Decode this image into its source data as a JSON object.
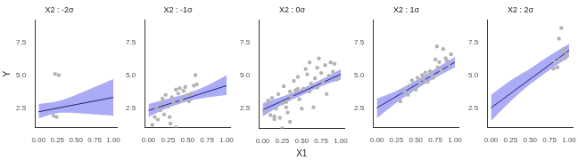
{
  "chart_data": [
    {
      "type": "scatter",
      "title": "X2 : -2σ",
      "y_label": "Y",
      "xlim": [
        -0.05,
        1.05
      ],
      "ylim": [
        1,
        9.2
      ],
      "xticks": [
        {
          "value": 0,
          "label": "0.00"
        },
        {
          "value": 0.25,
          "label": "0.25"
        },
        {
          "value": 0.5,
          "label": "0.50"
        },
        {
          "value": 0.75,
          "label": "0.75"
        },
        {
          "value": 1,
          "label": "1.00"
        }
      ],
      "yticks": [
        2.5,
        {
          "value": 5,
          "label": "5.0"
        },
        7.5
      ],
      "grid": false,
      "series": [
        {
          "type": "scatter",
          "color": "#b3b3b3",
          "x": [
            0.22,
            0.27,
            0.2,
            0.24
          ],
          "values": [
            5.1,
            5.0,
            1.9,
            1.8
          ]
        },
        {
          "type": "line",
          "color": "#1f1f7a",
          "x": [
            0,
            1
          ],
          "values": [
            2.2,
            3.3
          ]
        },
        {
          "type": "band",
          "color": "#a3a3f5",
          "x": [
            0,
            0.25,
            0.5,
            0.75,
            1
          ],
          "lower": [
            1.7,
            2.1,
            2.1,
            2.0,
            1.9
          ],
          "upper": [
            2.8,
            3.0,
            3.5,
            4.1,
            4.7
          ]
        }
      ]
    },
    {
      "type": "scatter",
      "title": "X2 : -1σ",
      "xlim": [
        -0.05,
        1.05
      ],
      "ylim": [
        1,
        9.2
      ],
      "xticks": [
        {
          "value": 0,
          "label": "0.00"
        },
        {
          "value": 0.25,
          "label": "0.25"
        },
        {
          "value": 0.5,
          "label": "0.50"
        },
        {
          "value": 0.75,
          "label": "0.75"
        },
        {
          "value": 1,
          "label": "1.00"
        }
      ],
      "yticks": [
        2.5,
        {
          "value": 5,
          "label": "5.0"
        },
        7.5
      ],
      "grid": false,
      "series": [
        {
          "type": "scatter",
          "color": "#b3b3b3",
          "x": [
            0.05,
            0.08,
            0.1,
            0.12,
            0.15,
            0.18,
            0.2,
            0.22,
            0.25,
            0.27,
            0.3,
            0.32,
            0.35,
            0.38,
            0.4,
            0.42,
            0.45,
            0.47,
            0.5,
            0.52,
            0.55,
            0.58,
            0.6,
            0.62,
            0.35,
            0.28,
            0.15
          ],
          "values": [
            1.2,
            1.8,
            2.5,
            1.6,
            2.8,
            3.2,
            2.0,
            3.5,
            2.6,
            1.8,
            3.3,
            2.9,
            3.9,
            3.6,
            4.0,
            3.1,
            3.8,
            4.1,
            3.5,
            3.0,
            3.6,
            4.2,
            5.0,
            4.3,
            1.0,
            1.3,
            2.3
          ]
        },
        {
          "type": "line",
          "color": "#1f1f7a",
          "x": [
            0,
            1
          ],
          "values": [
            2.3,
            4.2
          ]
        },
        {
          "type": "band",
          "color": "#a3a3f5",
          "x": [
            0,
            0.25,
            0.5,
            0.75,
            1
          ],
          "lower": [
            1.8,
            2.5,
            3.0,
            3.3,
            3.5
          ],
          "upper": [
            2.8,
            3.2,
            3.6,
            4.2,
            5.0
          ]
        }
      ]
    },
    {
      "type": "scatter",
      "title": "X2 : 0σ",
      "x_label": "X1",
      "xlim": [
        -0.05,
        1.05
      ],
      "ylim": [
        1,
        9.2
      ],
      "xticks": [
        {
          "value": 0,
          "label": "0.00"
        },
        {
          "value": 0.25,
          "label": "0.25"
        },
        {
          "value": 0.5,
          "label": "0.50"
        },
        {
          "value": 0.75,
          "label": "0.75"
        },
        {
          "value": 1,
          "label": "1.00"
        }
      ],
      "yticks": [
        2.5,
        {
          "value": 5,
          "label": "5.0"
        },
        7.5
      ],
      "grid": false,
      "series": [
        {
          "type": "scatter",
          "color": "#b3b3b3",
          "x": [
            0.02,
            0.05,
            0.07,
            0.1,
            0.12,
            0.15,
            0.17,
            0.2,
            0.22,
            0.25,
            0.27,
            0.3,
            0.32,
            0.35,
            0.37,
            0.4,
            0.42,
            0.45,
            0.47,
            0.5,
            0.52,
            0.55,
            0.57,
            0.6,
            0.62,
            0.65,
            0.67,
            0.7,
            0.72,
            0.75,
            0.77,
            0.8,
            0.82,
            0.85,
            0.87,
            0.9,
            0.92,
            0.95,
            0.25,
            0.35,
            0.45,
            0.6,
            0.7,
            0.15,
            0.3
          ],
          "values": [
            2.3,
            2.8,
            3.1,
            2.0,
            3.3,
            1.7,
            2.5,
            3.6,
            1.8,
            2.9,
            4.2,
            3.0,
            2.2,
            3.8,
            3.4,
            4.6,
            3.9,
            4.9,
            3.2,
            2.5,
            4.0,
            5.5,
            5.1,
            3.8,
            4.4,
            2.6,
            4.8,
            4.1,
            6.3,
            5.2,
            4.5,
            5.8,
            3.6,
            5.0,
            6.0,
            5.3,
            5.9,
            4.7,
            1.0,
            1.5,
            4.0,
            6.0,
            5.6,
            1.9,
            2.6
          ]
        },
        {
          "type": "line",
          "color": "#1f1f7a",
          "x": [
            0,
            1
          ],
          "values": [
            2.4,
            5.1
          ]
        },
        {
          "type": "band",
          "color": "#a3a3f5",
          "x": [
            0,
            0.25,
            0.5,
            0.75,
            1
          ],
          "lower": [
            1.9,
            2.8,
            3.5,
            4.2,
            4.7
          ],
          "upper": [
            2.9,
            3.4,
            4.0,
            4.7,
            5.5
          ]
        }
      ]
    },
    {
      "type": "scatter",
      "title": "X2 : 1σ",
      "xlim": [
        -0.05,
        1.05
      ],
      "ylim": [
        1,
        9.2
      ],
      "xticks": [
        {
          "value": 0,
          "label": "0.00"
        },
        {
          "value": 0.25,
          "label": "0.25"
        },
        {
          "value": 0.5,
          "label": "0.50"
        },
        {
          "value": 0.75,
          "label": "0.75"
        },
        {
          "value": 1,
          "label": "1.00"
        }
      ],
      "yticks": [
        2.5,
        {
          "value": 5,
          "label": "5.0"
        },
        7.5
      ],
      "grid": false,
      "series": [
        {
          "type": "scatter",
          "color": "#b3b3b3",
          "x": [
            0.3,
            0.35,
            0.4,
            0.42,
            0.45,
            0.5,
            0.52,
            0.55,
            0.58,
            0.6,
            0.62,
            0.65,
            0.68,
            0.7,
            0.72,
            0.75,
            0.77,
            0.78,
            0.8,
            0.82,
            0.85,
            0.88,
            0.9,
            0.92,
            0.95
          ],
          "values": [
            3.0,
            3.8,
            3.5,
            4.2,
            4.6,
            3.9,
            4.8,
            4.4,
            5.0,
            4.7,
            5.2,
            4.5,
            5.3,
            5.0,
            4.8,
            6.2,
            7.2,
            5.6,
            6.0,
            5.4,
            7.0,
            6.3,
            6.1,
            5.8,
            6.6
          ]
        },
        {
          "type": "line",
          "color": "#1f1f7a",
          "x": [
            0,
            1
          ],
          "values": [
            2.5,
            6.0
          ]
        },
        {
          "type": "band",
          "color": "#a3a3f5",
          "x": [
            0,
            0.25,
            0.5,
            0.75,
            1
          ],
          "lower": [
            1.7,
            2.9,
            3.9,
            4.8,
            5.6
          ],
          "upper": [
            3.2,
            3.8,
            4.6,
            5.5,
            6.4
          ]
        }
      ]
    },
    {
      "type": "scatter",
      "title": "X2 : 2σ",
      "xlim": [
        -0.05,
        1.05
      ],
      "ylim": [
        1,
        9.2
      ],
      "xticks": [
        {
          "value": 0,
          "label": "0.00"
        },
        {
          "value": 0.25,
          "label": "0.25"
        },
        {
          "value": 0.5,
          "label": "0.50"
        },
        {
          "value": 0.75,
          "label": "0.75"
        },
        {
          "value": 1,
          "label": "1.00"
        }
      ],
      "yticks": [
        2.5,
        {
          "value": 5,
          "label": "5.0"
        },
        7.5
      ],
      "grid": false,
      "series": [
        {
          "type": "scatter",
          "color": "#b3b3b3",
          "x": [
            0.8,
            0.82,
            0.85,
            0.87,
            0.88,
            0.9,
            0.92,
            0.93,
            0.95,
            0.97
          ],
          "values": [
            5.5,
            6.0,
            5.6,
            7.8,
            6.2,
            8.6,
            6.8,
            7.0,
            6.3,
            6.6
          ]
        },
        {
          "type": "line",
          "color": "#1f1f7a",
          "x": [
            0,
            1
          ],
          "values": [
            2.5,
            6.9
          ]
        },
        {
          "type": "band",
          "color": "#a3a3f5",
          "x": [
            0,
            0.25,
            0.5,
            0.75,
            1
          ],
          "lower": [
            1.5,
            3.0,
            4.3,
            5.4,
            6.4
          ],
          "upper": [
            3.5,
            4.6,
            5.5,
            6.5,
            7.4
          ]
        }
      ]
    }
  ]
}
